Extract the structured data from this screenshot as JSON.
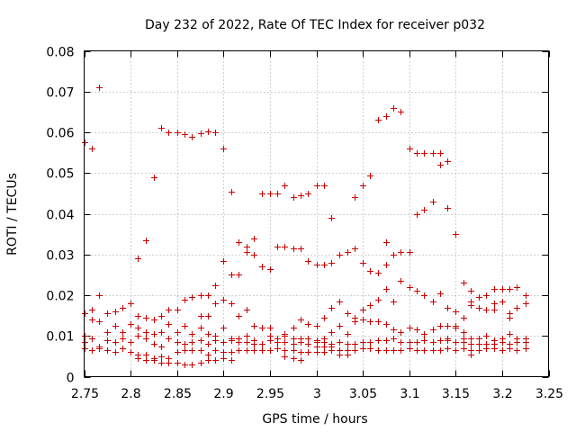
{
  "chart_data": {
    "type": "scatter",
    "title": "Day 232 of 2022, Rate Of TEC Index for receiver p032",
    "xlabel": "GPS time / hours",
    "ylabel": "ROTI / TECUs",
    "xlim": [
      2.75,
      3.25
    ],
    "ylim": [
      0,
      0.08
    ],
    "grid": true,
    "marker": "+",
    "series_color": "#cc0000",
    "x_ticks": [
      {
        "value": 2.75,
        "label": "2.75"
      },
      {
        "value": 2.8,
        "label": "2.8"
      },
      {
        "value": 2.85,
        "label": "2.85"
      },
      {
        "value": 2.9,
        "label": "2.9"
      },
      {
        "value": 2.95,
        "label": "2.95"
      },
      {
        "value": 3.0,
        "label": "3"
      },
      {
        "value": 3.05,
        "label": "3.05"
      },
      {
        "value": 3.1,
        "label": "3.1"
      },
      {
        "value": 3.15,
        "label": "3.15"
      },
      {
        "value": 3.2,
        "label": "3.2"
      },
      {
        "value": 3.25,
        "label": "3.25"
      }
    ],
    "y_ticks": [
      {
        "value": 0,
        "label": "0"
      },
      {
        "value": 0.01,
        "label": "0.01"
      },
      {
        "value": 0.02,
        "label": "0.02"
      },
      {
        "value": 0.03,
        "label": "0.03"
      },
      {
        "value": 0.04,
        "label": "0.04"
      },
      {
        "value": 0.05,
        "label": "0.05"
      },
      {
        "value": 0.06,
        "label": "0.06"
      },
      {
        "value": 0.07,
        "label": "0.07"
      },
      {
        "value": 0.08,
        "label": "0.08"
      }
    ],
    "points": [
      [
        2.75,
        0.0575
      ],
      [
        2.758,
        0.056
      ],
      [
        2.766,
        0.071
      ],
      [
        2.825,
        0.049
      ],
      [
        2.833,
        0.061
      ],
      [
        2.841,
        0.06
      ],
      [
        2.85,
        0.06
      ],
      [
        2.858,
        0.0595
      ],
      [
        2.866,
        0.059
      ],
      [
        2.875,
        0.0598
      ],
      [
        2.883,
        0.0602
      ],
      [
        2.891,
        0.06
      ],
      [
        2.9,
        0.056
      ],
      [
        2.908,
        0.0455
      ],
      [
        2.916,
        0.033
      ],
      [
        2.925,
        0.032
      ],
      [
        2.933,
        0.034
      ],
      [
        2.941,
        0.045
      ],
      [
        2.95,
        0.045
      ],
      [
        2.958,
        0.045
      ],
      [
        2.966,
        0.047
      ],
      [
        2.975,
        0.044
      ],
      [
        2.983,
        0.0445
      ],
      [
        2.991,
        0.045
      ],
      [
        3.0,
        0.047
      ],
      [
        3.008,
        0.047
      ],
      [
        3.016,
        0.039
      ],
      [
        3.041,
        0.044
      ],
      [
        3.05,
        0.047
      ],
      [
        3.058,
        0.0495
      ],
      [
        3.066,
        0.063
      ],
      [
        3.075,
        0.064
      ],
      [
        3.083,
        0.066
      ],
      [
        3.091,
        0.065
      ],
      [
        3.1,
        0.056
      ],
      [
        3.108,
        0.055
      ],
      [
        3.116,
        0.055
      ],
      [
        3.125,
        0.055
      ],
      [
        3.133,
        0.055
      ],
      [
        3.141,
        0.053
      ],
      [
        3.133,
        0.052
      ],
      [
        3.108,
        0.04
      ],
      [
        3.116,
        0.041
      ],
      [
        3.125,
        0.043
      ],
      [
        3.141,
        0.0415
      ],
      [
        3.15,
        0.035
      ],
      [
        3.158,
        0.023
      ],
      [
        3.166,
        0.021
      ],
      [
        2.808,
        0.029
      ],
      [
        2.816,
        0.0335
      ],
      [
        2.875,
        0.02
      ],
      [
        2.883,
        0.02
      ],
      [
        2.891,
        0.0225
      ],
      [
        2.9,
        0.0285
      ],
      [
        2.908,
        0.025
      ],
      [
        2.916,
        0.025
      ],
      [
        2.925,
        0.0305
      ],
      [
        2.933,
        0.03
      ],
      [
        2.941,
        0.027
      ],
      [
        2.95,
        0.0265
      ],
      [
        2.958,
        0.032
      ],
      [
        2.966,
        0.032
      ],
      [
        2.975,
        0.0315
      ],
      [
        2.983,
        0.0315
      ],
      [
        2.991,
        0.0285
      ],
      [
        3.0,
        0.0275
      ],
      [
        3.008,
        0.0275
      ],
      [
        3.016,
        0.028
      ],
      [
        3.025,
        0.03
      ],
      [
        3.033,
        0.0305
      ],
      [
        3.041,
        0.0315
      ],
      [
        3.05,
        0.028
      ],
      [
        3.058,
        0.026
      ],
      [
        3.066,
        0.0255
      ],
      [
        3.075,
        0.0275
      ],
      [
        3.083,
        0.03
      ],
      [
        3.091,
        0.0305
      ],
      [
        3.1,
        0.0305
      ],
      [
        3.075,
        0.033
      ],
      [
        2.75,
        0.0155
      ],
      [
        2.758,
        0.0165
      ],
      [
        2.766,
        0.02
      ],
      [
        2.775,
        0.0155
      ],
      [
        2.783,
        0.016
      ],
      [
        2.791,
        0.017
      ],
      [
        2.8,
        0.018
      ],
      [
        2.808,
        0.015
      ],
      [
        2.816,
        0.0145
      ],
      [
        2.825,
        0.014
      ],
      [
        2.833,
        0.015
      ],
      [
        2.841,
        0.0165
      ],
      [
        2.85,
        0.0165
      ],
      [
        2.858,
        0.019
      ],
      [
        2.866,
        0.0195
      ],
      [
        2.875,
        0.015
      ],
      [
        2.883,
        0.015
      ],
      [
        2.891,
        0.018
      ],
      [
        2.9,
        0.019
      ],
      [
        2.908,
        0.018
      ],
      [
        2.916,
        0.015
      ],
      [
        2.925,
        0.0165
      ],
      [
        2.933,
        0.0125
      ],
      [
        2.941,
        0.012
      ],
      [
        2.95,
        0.012
      ],
      [
        2.958,
        0.0095
      ],
      [
        2.966,
        0.01
      ],
      [
        2.975,
        0.012
      ],
      [
        2.983,
        0.014
      ],
      [
        2.991,
        0.013
      ],
      [
        3.0,
        0.0125
      ],
      [
        3.008,
        0.0145
      ],
      [
        3.016,
        0.017
      ],
      [
        3.025,
        0.0185
      ],
      [
        3.033,
        0.0155
      ],
      [
        3.041,
        0.0135
      ],
      [
        3.05,
        0.0165
      ],
      [
        3.058,
        0.0175
      ],
      [
        3.066,
        0.019
      ],
      [
        3.075,
        0.0215
      ],
      [
        3.083,
        0.0185
      ],
      [
        3.091,
        0.0235
      ],
      [
        3.1,
        0.022
      ],
      [
        3.108,
        0.021
      ],
      [
        3.116,
        0.02
      ],
      [
        3.125,
        0.0185
      ],
      [
        3.133,
        0.0205
      ],
      [
        3.141,
        0.017
      ],
      [
        3.15,
        0.016
      ],
      [
        3.158,
        0.0145
      ],
      [
        3.166,
        0.0175
      ],
      [
        3.175,
        0.0195
      ],
      [
        3.183,
        0.02
      ],
      [
        3.191,
        0.0215
      ],
      [
        3.2,
        0.0215
      ],
      [
        3.208,
        0.0215
      ],
      [
        3.216,
        0.022
      ],
      [
        3.225,
        0.02
      ],
      [
        3.175,
        0.017
      ],
      [
        3.183,
        0.0165
      ],
      [
        3.191,
        0.018
      ],
      [
        3.2,
        0.0185
      ],
      [
        3.208,
        0.0155
      ],
      [
        3.216,
        0.017
      ],
      [
        3.225,
        0.018
      ],
      [
        3.166,
        0.0185
      ],
      [
        3.191,
        0.0165
      ],
      [
        3.208,
        0.0145
      ],
      [
        3.15,
        0.0125
      ],
      [
        2.75,
        0.01
      ],
      [
        2.758,
        0.014
      ],
      [
        2.766,
        0.0135
      ],
      [
        2.775,
        0.011
      ],
      [
        2.783,
        0.0125
      ],
      [
        2.791,
        0.011
      ],
      [
        2.8,
        0.013
      ],
      [
        2.808,
        0.012
      ],
      [
        2.816,
        0.011
      ],
      [
        2.825,
        0.0105
      ],
      [
        2.833,
        0.011
      ],
      [
        2.841,
        0.013
      ],
      [
        2.85,
        0.011
      ],
      [
        2.858,
        0.0125
      ],
      [
        2.866,
        0.0105
      ],
      [
        2.875,
        0.012
      ],
      [
        2.883,
        0.0105
      ],
      [
        2.891,
        0.01
      ],
      [
        2.9,
        0.012
      ],
      [
        2.908,
        0.0095
      ],
      [
        2.916,
        0.0095
      ],
      [
        2.925,
        0.01
      ],
      [
        2.933,
        0.009
      ],
      [
        2.941,
        0.012
      ],
      [
        2.95,
        0.01
      ],
      [
        2.958,
        0.0095
      ],
      [
        2.966,
        0.0105
      ],
      [
        2.975,
        0.0095
      ],
      [
        2.983,
        0.0095
      ],
      [
        2.991,
        0.0095
      ],
      [
        3.0,
        0.009
      ],
      [
        3.008,
        0.0095
      ],
      [
        3.016,
        0.011
      ],
      [
        3.025,
        0.0125
      ],
      [
        3.033,
        0.0105
      ],
      [
        3.041,
        0.0145
      ],
      [
        3.05,
        0.014
      ],
      [
        3.058,
        0.0135
      ],
      [
        3.066,
        0.0135
      ],
      [
        3.075,
        0.013
      ],
      [
        3.083,
        0.0115
      ],
      [
        3.091,
        0.011
      ],
      [
        3.1,
        0.012
      ],
      [
        3.108,
        0.0115
      ],
      [
        3.116,
        0.0105
      ],
      [
        3.125,
        0.0115
      ],
      [
        3.133,
        0.0125
      ],
      [
        3.141,
        0.0125
      ],
      [
        3.15,
        0.012
      ],
      [
        3.158,
        0.011
      ],
      [
        3.166,
        0.0095
      ],
      [
        3.175,
        0.0095
      ],
      [
        3.183,
        0.01
      ],
      [
        3.191,
        0.009
      ],
      [
        3.2,
        0.0095
      ],
      [
        3.208,
        0.0105
      ],
      [
        3.216,
        0.0095
      ],
      [
        3.225,
        0.0095
      ],
      [
        2.75,
        0.0085
      ],
      [
        2.758,
        0.0095
      ],
      [
        2.766,
        0.0075
      ],
      [
        2.775,
        0.009
      ],
      [
        2.783,
        0.0085
      ],
      [
        2.791,
        0.0095
      ],
      [
        2.8,
        0.0085
      ],
      [
        2.808,
        0.01
      ],
      [
        2.816,
        0.0095
      ],
      [
        2.825,
        0.008
      ],
      [
        2.833,
        0.0075
      ],
      [
        2.841,
        0.0095
      ],
      [
        2.85,
        0.0085
      ],
      [
        2.858,
        0.008
      ],
      [
        2.866,
        0.0085
      ],
      [
        2.875,
        0.009
      ],
      [
        2.883,
        0.008
      ],
      [
        2.891,
        0.009
      ],
      [
        2.9,
        0.0085
      ],
      [
        2.908,
        0.009
      ],
      [
        2.916,
        0.0085
      ],
      [
        2.925,
        0.0085
      ],
      [
        2.933,
        0.008
      ],
      [
        2.941,
        0.008
      ],
      [
        2.95,
        0.009
      ],
      [
        2.958,
        0.0085
      ],
      [
        2.966,
        0.0085
      ],
      [
        2.975,
        0.008
      ],
      [
        2.983,
        0.0085
      ],
      [
        2.991,
        0.008
      ],
      [
        3.0,
        0.0085
      ],
      [
        3.008,
        0.0085
      ],
      [
        3.016,
        0.008
      ],
      [
        3.025,
        0.0085
      ],
      [
        3.033,
        0.008
      ],
      [
        3.041,
        0.008
      ],
      [
        3.05,
        0.0085
      ],
      [
        3.058,
        0.0085
      ],
      [
        3.066,
        0.009
      ],
      [
        3.075,
        0.009
      ],
      [
        3.083,
        0.0095
      ],
      [
        3.091,
        0.0085
      ],
      [
        3.1,
        0.0085
      ],
      [
        3.108,
        0.0085
      ],
      [
        3.116,
        0.009
      ],
      [
        3.125,
        0.0085
      ],
      [
        3.133,
        0.009
      ],
      [
        3.141,
        0.009
      ],
      [
        3.15,
        0.0085
      ],
      [
        3.158,
        0.0085
      ],
      [
        3.166,
        0.008
      ],
      [
        3.175,
        0.008
      ],
      [
        3.183,
        0.008
      ],
      [
        3.191,
        0.008
      ],
      [
        3.2,
        0.0085
      ],
      [
        3.208,
        0.008
      ],
      [
        3.216,
        0.0085
      ],
      [
        3.225,
        0.0085
      ],
      [
        2.75,
        0.007
      ],
      [
        2.758,
        0.0065
      ],
      [
        2.766,
        0.007
      ],
      [
        2.775,
        0.0065
      ],
      [
        2.783,
        0.006
      ],
      [
        2.791,
        0.007
      ],
      [
        2.8,
        0.006
      ],
      [
        2.808,
        0.0055
      ],
      [
        2.816,
        0.0055
      ],
      [
        2.825,
        0.0045
      ],
      [
        2.833,
        0.005
      ],
      [
        2.841,
        0.0045
      ],
      [
        2.85,
        0.006
      ],
      [
        2.858,
        0.0065
      ],
      [
        2.866,
        0.0065
      ],
      [
        2.875,
        0.0065
      ],
      [
        2.883,
        0.0055
      ],
      [
        2.891,
        0.0065
      ],
      [
        2.9,
        0.006
      ],
      [
        2.908,
        0.006
      ],
      [
        2.916,
        0.0065
      ],
      [
        2.925,
        0.0065
      ],
      [
        2.933,
        0.0065
      ],
      [
        2.941,
        0.0065
      ],
      [
        2.95,
        0.0065
      ],
      [
        2.958,
        0.007
      ],
      [
        2.966,
        0.0065
      ],
      [
        2.975,
        0.0065
      ],
      [
        2.983,
        0.006
      ],
      [
        2.991,
        0.006
      ],
      [
        3.0,
        0.006
      ],
      [
        3.008,
        0.006
      ],
      [
        3.016,
        0.0065
      ],
      [
        3.025,
        0.0065
      ],
      [
        3.033,
        0.0065
      ],
      [
        3.041,
        0.0065
      ],
      [
        3.05,
        0.007
      ],
      [
        3.058,
        0.007
      ],
      [
        3.066,
        0.0065
      ],
      [
        3.075,
        0.0065
      ],
      [
        3.083,
        0.0065
      ],
      [
        3.091,
        0.0065
      ],
      [
        3.1,
        0.007
      ],
      [
        3.108,
        0.0065
      ],
      [
        3.116,
        0.0065
      ],
      [
        3.125,
        0.0065
      ],
      [
        3.133,
        0.0065
      ],
      [
        3.141,
        0.007
      ],
      [
        3.15,
        0.0065
      ],
      [
        3.158,
        0.007
      ],
      [
        3.166,
        0.0065
      ],
      [
        3.175,
        0.0065
      ],
      [
        3.183,
        0.007
      ],
      [
        3.191,
        0.007
      ],
      [
        3.2,
        0.0065
      ],
      [
        3.208,
        0.007
      ],
      [
        3.216,
        0.0065
      ],
      [
        3.225,
        0.007
      ],
      [
        2.808,
        0.0045
      ],
      [
        2.816,
        0.004
      ],
      [
        2.825,
        0.004
      ],
      [
        2.833,
        0.0035
      ],
      [
        2.841,
        0.0035
      ],
      [
        2.85,
        0.0035
      ],
      [
        2.858,
        0.003
      ],
      [
        2.866,
        0.003
      ],
      [
        2.875,
        0.0035
      ],
      [
        2.883,
        0.004
      ],
      [
        2.891,
        0.004
      ],
      [
        2.9,
        0.0045
      ],
      [
        2.908,
        0.004
      ],
      [
        2.966,
        0.005
      ],
      [
        2.975,
        0.0045
      ],
      [
        2.983,
        0.004
      ],
      [
        3.0,
        0.0075
      ],
      [
        3.008,
        0.0075
      ],
      [
        3.016,
        0.0075
      ],
      [
        3.025,
        0.0055
      ],
      [
        3.033,
        0.0055
      ],
      [
        3.041,
        0.0065
      ],
      [
        3.116,
        0.0065
      ],
      [
        3.166,
        0.0055
      ],
      [
        3.158,
        0.0095
      ],
      [
        3.141,
        0.0095
      ]
    ]
  }
}
